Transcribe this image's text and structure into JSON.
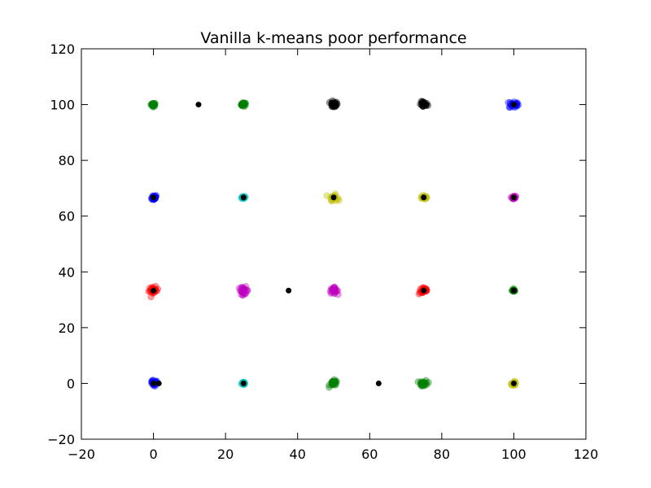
{
  "chart_data": {
    "type": "scatter",
    "title": "Vanilla k-means poor performance",
    "xlabel": "",
    "ylabel": "",
    "xlim": [
      -20,
      120
    ],
    "ylim": [
      -20,
      120
    ],
    "xticks": [
      -20,
      0,
      20,
      40,
      60,
      80,
      100,
      120
    ],
    "yticks": [
      -20,
      0,
      20,
      40,
      60,
      80,
      100,
      120
    ],
    "grid": false,
    "legend": "none",
    "clusters": [
      {
        "x": 0,
        "y": 100,
        "color": "#008000",
        "spread": 0.6
      },
      {
        "x": 25,
        "y": 100,
        "color": "#008000",
        "spread": 0.6
      },
      {
        "x": 50,
        "y": 100,
        "color": "#000000",
        "spread": 1.0
      },
      {
        "x": 75,
        "y": 100,
        "color": "#000000",
        "spread": 1.0
      },
      {
        "x": 100,
        "y": 100,
        "color": "#0000ff",
        "spread": 1.2
      },
      {
        "x": 0,
        "y": 66.7,
        "color": "#0000ff",
        "spread": 0.9
      },
      {
        "x": 25,
        "y": 66.7,
        "color": "#00bfbf",
        "spread": 0.5
      },
      {
        "x": 50,
        "y": 66.7,
        "color": "#bfbf00",
        "spread": 1.0
      },
      {
        "x": 75,
        "y": 66.7,
        "color": "#bfbf00",
        "spread": 0.6
      },
      {
        "x": 100,
        "y": 66.7,
        "color": "#bf00bf",
        "spread": 0.5
      },
      {
        "x": 0,
        "y": 33.3,
        "color": "#ff0000",
        "spread": 1.2
      },
      {
        "x": 25,
        "y": 33.3,
        "color": "#bf00bf",
        "spread": 1.2
      },
      {
        "x": 50,
        "y": 33.3,
        "color": "#bf00bf",
        "spread": 1.0
      },
      {
        "x": 75,
        "y": 33.3,
        "color": "#ff0000",
        "spread": 1.2
      },
      {
        "x": 100,
        "y": 33.3,
        "color": "#008000",
        "spread": 0.4
      },
      {
        "x": 0,
        "y": 0,
        "color": "#0000ff",
        "spread": 1.0
      },
      {
        "x": 25,
        "y": 0,
        "color": "#00bfbf",
        "spread": 0.4
      },
      {
        "x": 50,
        "y": 0,
        "color": "#008000",
        "spread": 1.0
      },
      {
        "x": 75,
        "y": 0,
        "color": "#008000",
        "spread": 1.0
      },
      {
        "x": 100,
        "y": 0,
        "color": "#bfbf00",
        "spread": 0.6
      }
    ],
    "centroids": [
      {
        "x": 12.5,
        "y": 100
      },
      {
        "x": 50,
        "y": 100
      },
      {
        "x": 75,
        "y": 100
      },
      {
        "x": 100,
        "y": 100
      },
      {
        "x": 0,
        "y": 66.7
      },
      {
        "x": 25,
        "y": 66.7
      },
      {
        "x": 50,
        "y": 66.7
      },
      {
        "x": 75,
        "y": 66.7
      },
      {
        "x": 100,
        "y": 66.7
      },
      {
        "x": 0,
        "y": 33.3
      },
      {
        "x": 37.5,
        "y": 33.3
      },
      {
        "x": 75,
        "y": 33.3
      },
      {
        "x": 100,
        "y": 33.3
      },
      {
        "x": 0,
        "y": 0
      },
      {
        "x": 1.5,
        "y": 0
      },
      {
        "x": 25,
        "y": 0
      },
      {
        "x": 62.5,
        "y": 0
      },
      {
        "x": 100,
        "y": 0
      }
    ],
    "centroid_color": "#000000",
    "point_alpha": 0.4
  }
}
